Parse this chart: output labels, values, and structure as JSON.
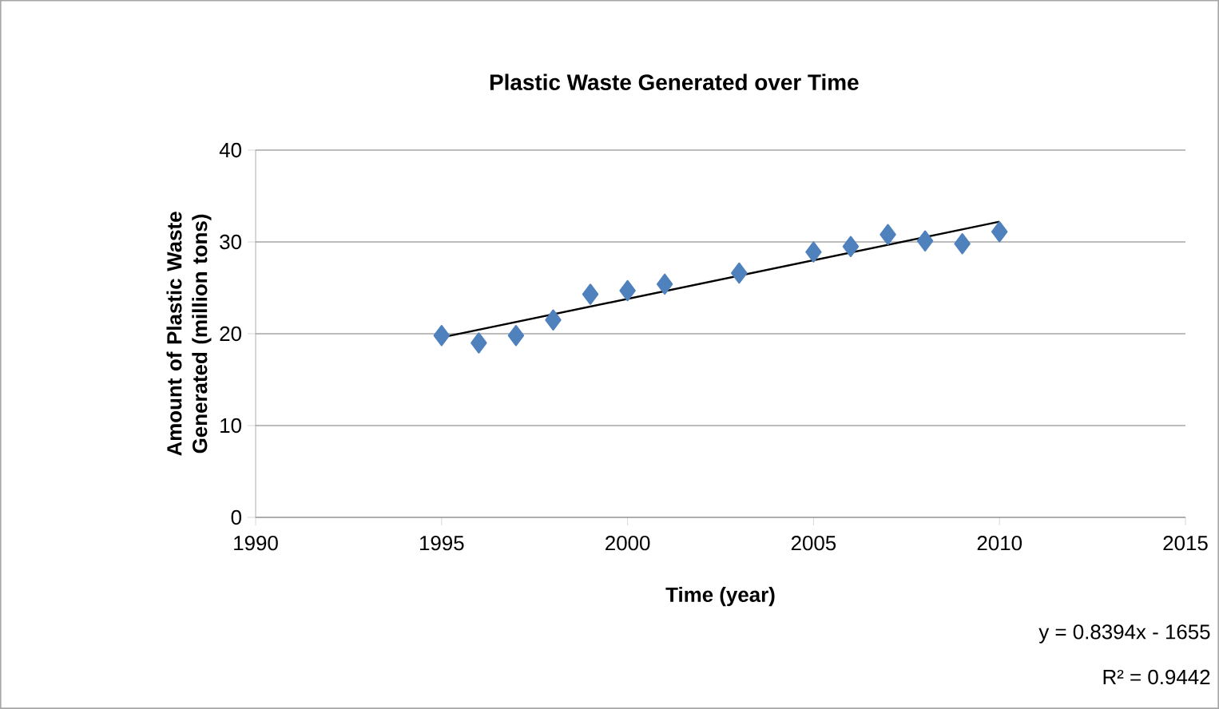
{
  "chart_data": {
    "type": "scatter",
    "title": "Plastic Waste Generated over Time",
    "xlabel": "Time (year)",
    "ylabel": "Amount of Plastic Waste Generated (million tons)",
    "xlim": [
      1990,
      2015
    ],
    "xticks": [
      1990,
      1995,
      2000,
      2005,
      2010,
      2015
    ],
    "ylim": [
      0,
      40
    ],
    "yticks": [
      0,
      10,
      20,
      30,
      40
    ],
    "grid": "y",
    "marker": "diamond",
    "series": [
      {
        "color": "#4f81bd",
        "x": [
          1995,
          1996,
          1997,
          1998,
          1999,
          2000,
          2001,
          2003,
          2005,
          2006,
          2007,
          2008,
          2009,
          2010
        ],
        "values": [
          19.8,
          19.0,
          19.8,
          21.5,
          24.3,
          24.7,
          25.4,
          26.6,
          28.9,
          29.5,
          30.8,
          30.1,
          29.8,
          31.1
        ]
      },
      {
        "type": "line",
        "color": "#000000",
        "marker": "none",
        "x": [
          1995,
          2010
        ],
        "values": [
          19.6,
          32.2
        ]
      }
    ],
    "annotations": [
      "y = 0.8394x - 1655",
      "R² = 0.9442"
    ]
  }
}
